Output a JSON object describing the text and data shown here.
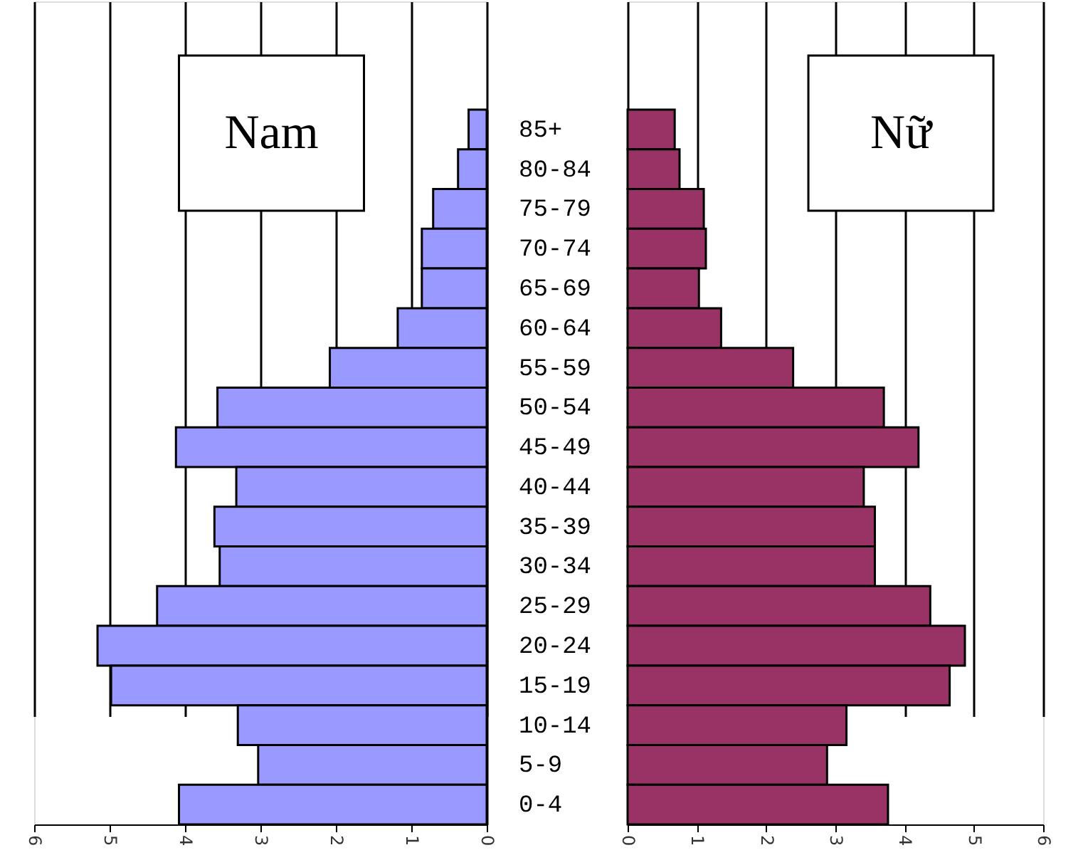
{
  "chart_data": [
    {
      "type": "bar",
      "orientation": "horizontal",
      "title": "Nam",
      "categories": [
        "85+",
        "80-84",
        "75-79",
        "70-74",
        "65-69",
        "60-64",
        "55-59",
        "50-54",
        "45-49",
        "40-44",
        "35-39",
        "30-34",
        "25-29",
        "20-24",
        "15-19",
        "10-14",
        "5-9",
        "0-4"
      ],
      "values": [
        0.24,
        0.38,
        0.71,
        0.86,
        0.86,
        1.18,
        2.08,
        3.57,
        4.12,
        3.32,
        3.61,
        3.54,
        4.37,
        5.16,
        4.98,
        3.3,
        3.03,
        4.08
      ],
      "color": "#9999ff",
      "xlim": [
        6,
        0
      ],
      "xticks": [
        6,
        5,
        4,
        3,
        2,
        1,
        0
      ],
      "grid": "x"
    },
    {
      "type": "bar",
      "orientation": "horizontal",
      "title": "Nữ",
      "categories": [
        "85+",
        "80-84",
        "75-79",
        "70-74",
        "65-69",
        "60-64",
        "55-59",
        "50-54",
        "45-49",
        "40-44",
        "35-39",
        "30-34",
        "25-29",
        "20-24",
        "15-19",
        "10-14",
        "5-9",
        "0-4"
      ],
      "values": [
        0.68,
        0.75,
        1.1,
        1.13,
        1.03,
        1.35,
        2.39,
        3.7,
        4.2,
        3.41,
        3.57,
        3.57,
        4.37,
        4.87,
        4.65,
        3.16,
        2.88,
        3.76
      ],
      "color": "#993366",
      "xlim": [
        0,
        6
      ],
      "xticks": [
        0,
        1,
        2,
        3,
        4,
        5,
        6
      ],
      "grid": "x",
      "tick_labels": "x"
    }
  ]
}
